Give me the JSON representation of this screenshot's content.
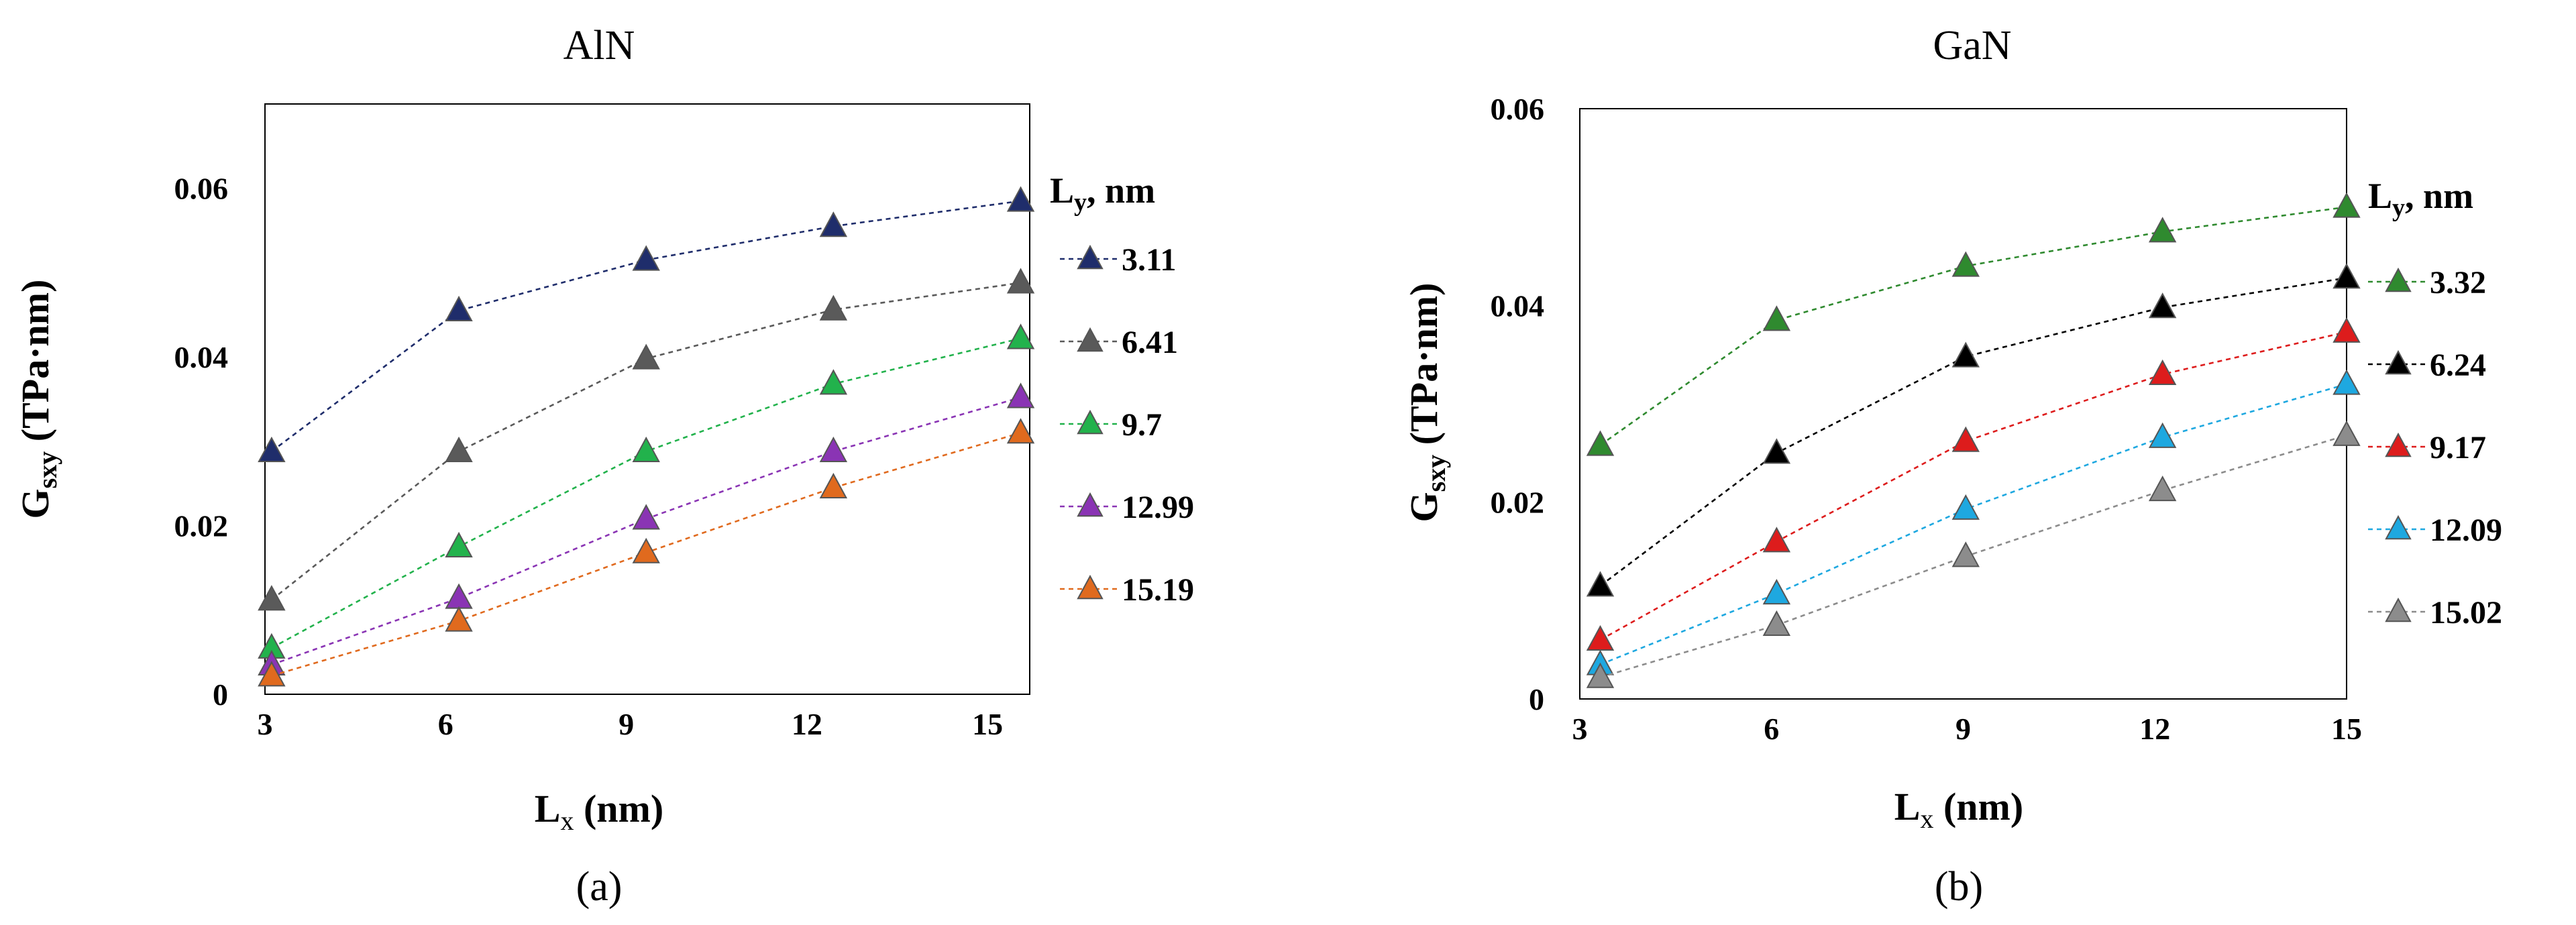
{
  "chart_data": [
    {
      "type": "line",
      "panel": "a",
      "title": "AlN",
      "caption": "(a)",
      "xlabel_main": "L",
      "xlabel_sub": "x",
      "xlabel_rest": " (nm)",
      "ylabel_main": "G",
      "ylabel_sub": "sxy",
      "ylabel_rest": " (TPa·nm)",
      "xlim": [
        3,
        15.7
      ],
      "ylim": [
        0,
        0.07
      ],
      "xticks": [
        3,
        6,
        9,
        12,
        15
      ],
      "yticks": [
        0,
        0.02,
        0.04,
        0.06
      ],
      "yticklabels": [
        "0",
        "0.02",
        "0.04",
        "0.06"
      ],
      "legend_title_main": "L",
      "legend_title_sub": "y",
      "legend_title_rest": ", nm",
      "x": [
        3.11,
        6.22,
        9.33,
        12.44,
        15.55
      ],
      "series": [
        {
          "name": "3.11",
          "color": "#1f2d6b",
          "values": [
            0.0288,
            0.0455,
            0.0515,
            0.0555,
            0.0585
          ]
        },
        {
          "name": "6.41",
          "color": "#5a5a5a",
          "values": [
            0.0112,
            0.0288,
            0.0398,
            0.0456,
            0.0488
          ]
        },
        {
          "name": "9.7",
          "color": "#22b24c",
          "values": [
            0.0055,
            0.0175,
            0.0288,
            0.0368,
            0.0422
          ]
        },
        {
          "name": "12.99",
          "color": "#8a34b4",
          "values": [
            0.0035,
            0.0114,
            0.0208,
            0.0288,
            0.0352
          ]
        },
        {
          "name": "15.19",
          "color": "#e06a1e",
          "values": [
            0.0022,
            0.0087,
            0.0168,
            0.0245,
            0.031
          ]
        }
      ]
    },
    {
      "type": "line",
      "panel": "b",
      "title": "GaN",
      "caption": "(b)",
      "xlabel_main": "L",
      "xlabel_sub": "x",
      "xlabel_rest": " (nm)",
      "ylabel_main": "G",
      "ylabel_sub": "sxy",
      "ylabel_rest": " (TPa·nm)",
      "xlim": [
        3,
        15
      ],
      "ylim": [
        0,
        0.06
      ],
      "xticks": [
        3,
        6,
        9,
        12,
        15
      ],
      "yticks": [
        0,
        0.02,
        0.04,
        0.06
      ],
      "yticklabels": [
        "0",
        "0.02",
        "0.04",
        "0.06"
      ],
      "legend_title_main": "L",
      "legend_title_sub": "y",
      "legend_title_rest": ", nm",
      "x": [
        3.32,
        6.08,
        9.04,
        12.12,
        15.0
      ],
      "series": [
        {
          "name": "3.32",
          "color": "#2f8a2f",
          "values": [
            0.0258,
            0.0385,
            0.044,
            0.0475,
            0.05
          ]
        },
        {
          "name": "6.24",
          "color": "#000000",
          "values": [
            0.0115,
            0.025,
            0.0348,
            0.0398,
            0.0428
          ]
        },
        {
          "name": "9.17",
          "color": "#dd1c1c",
          "values": [
            0.006,
            0.016,
            0.0262,
            0.033,
            0.0373
          ]
        },
        {
          "name": "12.09",
          "color": "#1ea8e0",
          "values": [
            0.0035,
            0.0107,
            0.0193,
            0.0266,
            0.032
          ]
        },
        {
          "name": "15.02",
          "color": "#8c8c8c",
          "values": [
            0.0022,
            0.0075,
            0.0145,
            0.0212,
            0.0268
          ]
        }
      ]
    }
  ]
}
